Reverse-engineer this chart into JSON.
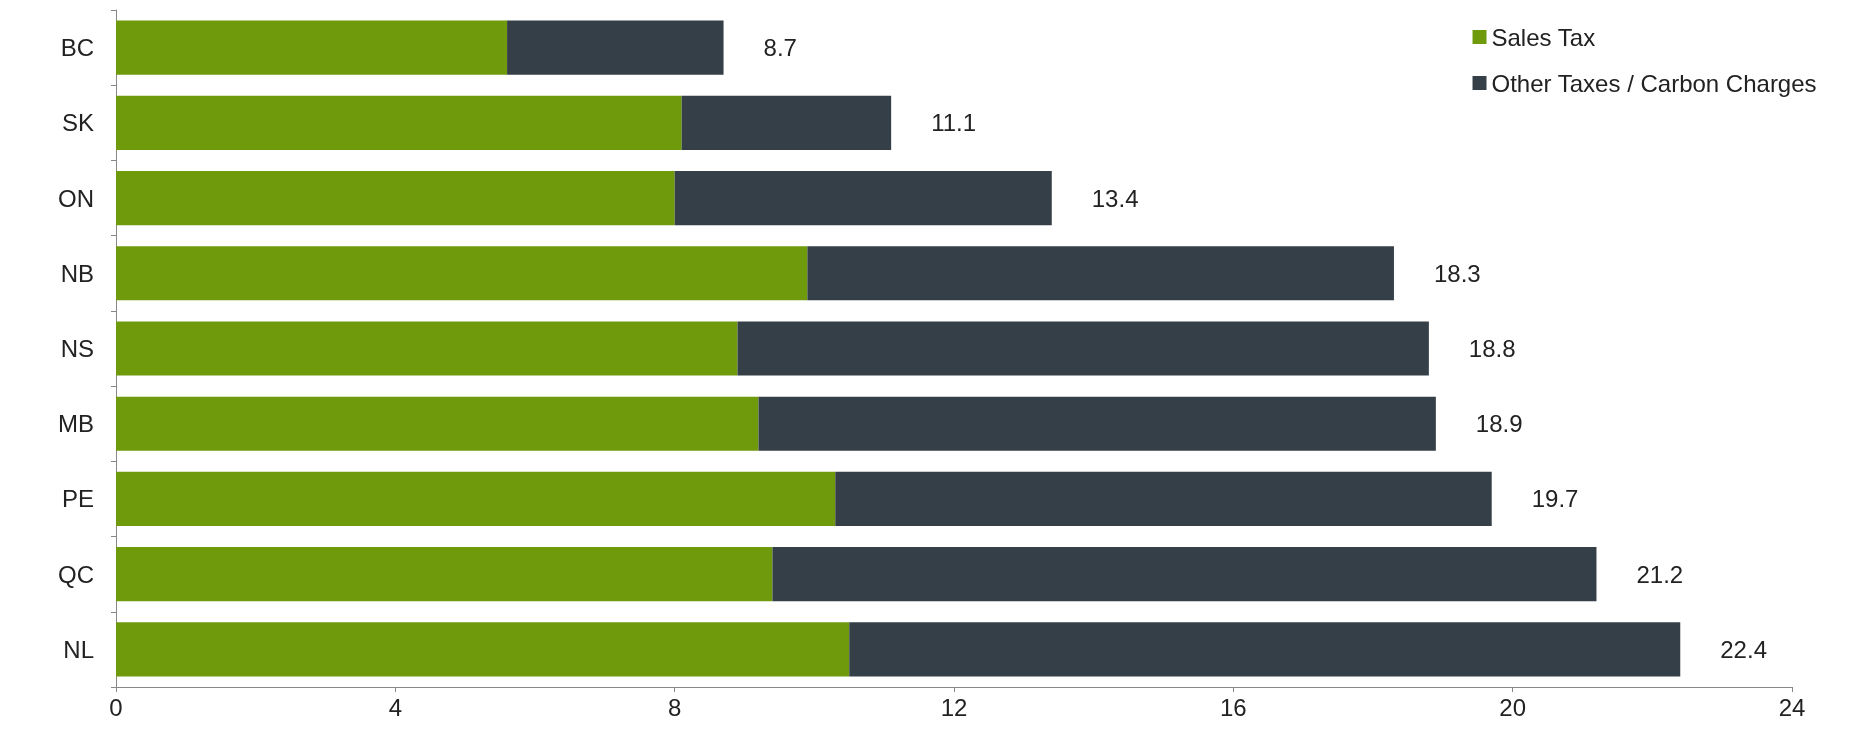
{
  "chart_data": {
    "type": "bar",
    "orientation": "horizontal",
    "stacked": true,
    "categories": [
      "BC",
      "SK",
      "ON",
      "NB",
      "NS",
      "MB",
      "PE",
      "QC",
      "NL"
    ],
    "series": [
      {
        "name": "Sales Tax",
        "color": "#6f9a0c",
        "values": [
          5.6,
          8.1,
          8.0,
          9.9,
          8.9,
          9.2,
          10.3,
          9.4,
          10.5
        ]
      },
      {
        "name": "Other Taxes / Carbon Charges",
        "color": "#353f47",
        "values": [
          3.1,
          3.0,
          5.4,
          8.4,
          9.9,
          9.7,
          9.4,
          11.8,
          11.9
        ]
      }
    ],
    "totals": [
      "8.7",
      "11.1",
      "13.4",
      "18.3",
      "18.8",
      "18.9",
      "19.7",
      "21.2",
      "22.4"
    ],
    "xlim": [
      0,
      24
    ],
    "xticks": [
      0,
      4,
      8,
      12,
      16,
      20,
      24
    ],
    "grid": false,
    "legend": "top right"
  }
}
